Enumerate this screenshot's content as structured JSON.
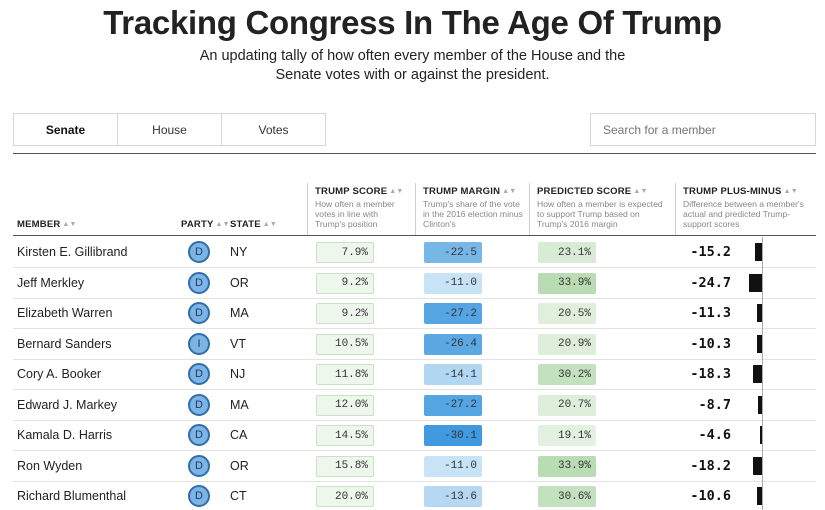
{
  "header": {
    "title": "Tracking Congress In The Age Of Trump",
    "subtitle": "An updating tally of how often every member of the House and the Senate votes with or against the president."
  },
  "tabs": [
    {
      "label": "Senate",
      "active": true
    },
    {
      "label": "House",
      "active": false
    },
    {
      "label": "Votes",
      "active": false
    }
  ],
  "search": {
    "placeholder": "Search for a member"
  },
  "columns": {
    "member": {
      "label": "MEMBER"
    },
    "party": {
      "label": "PARTY"
    },
    "state": {
      "label": "STATE"
    },
    "trump_score": {
      "label": "TRUMP SCORE",
      "desc": "How often a member votes in line with Trump's position"
    },
    "trump_margin": {
      "label": "TRUMP MARGIN",
      "desc": "Trump's share of the vote in the 2016 election minus Clinton's"
    },
    "predicted_score": {
      "label": "PREDICTED SCORE",
      "desc": "How often a member is expected to support Trump based on Trump's 2016 margin"
    },
    "plus_minus": {
      "label": "TRUMP PLUS-MINUS",
      "desc": "Difference between a member's actual and predicted Trump-support scores"
    }
  },
  "rows": [
    {
      "name": "Kirsten E. Gillibrand",
      "party": "D",
      "state": "NY",
      "score": "7.9%",
      "margin": "-22.5",
      "predicted": "23.1%",
      "plus_minus": "-15.2",
      "pm_value": -15.2,
      "margin_value": -22.5,
      "predicted_value": 23.1
    },
    {
      "name": "Jeff Merkley",
      "party": "D",
      "state": "OR",
      "score": "9.2%",
      "margin": "-11.0",
      "predicted": "33.9%",
      "plus_minus": "-24.7",
      "pm_value": -24.7,
      "margin_value": -11.0,
      "predicted_value": 33.9
    },
    {
      "name": "Elizabeth Warren",
      "party": "D",
      "state": "MA",
      "score": "9.2%",
      "margin": "-27.2",
      "predicted": "20.5%",
      "plus_minus": "-11.3",
      "pm_value": -11.3,
      "margin_value": -27.2,
      "predicted_value": 20.5
    },
    {
      "name": "Bernard Sanders",
      "party": "I",
      "state": "VT",
      "score": "10.5%",
      "margin": "-26.4",
      "predicted": "20.9%",
      "plus_minus": "-10.3",
      "pm_value": -10.3,
      "margin_value": -26.4,
      "predicted_value": 20.9
    },
    {
      "name": "Cory A. Booker",
      "party": "D",
      "state": "NJ",
      "score": "11.8%",
      "margin": "-14.1",
      "predicted": "30.2%",
      "plus_minus": "-18.3",
      "pm_value": -18.3,
      "margin_value": -14.1,
      "predicted_value": 30.2
    },
    {
      "name": "Edward J. Markey",
      "party": "D",
      "state": "MA",
      "score": "12.0%",
      "margin": "-27.2",
      "predicted": "20.7%",
      "plus_minus": "-8.7",
      "pm_value": -8.7,
      "margin_value": -27.2,
      "predicted_value": 20.7
    },
    {
      "name": "Kamala D. Harris",
      "party": "D",
      "state": "CA",
      "score": "14.5%",
      "margin": "-30.1",
      "predicted": "19.1%",
      "plus_minus": "-4.6",
      "pm_value": -4.6,
      "margin_value": -30.1,
      "predicted_value": 19.1
    },
    {
      "name": "Ron Wyden",
      "party": "D",
      "state": "OR",
      "score": "15.8%",
      "margin": "-11.0",
      "predicted": "33.9%",
      "plus_minus": "-18.2",
      "pm_value": -18.2,
      "margin_value": -11.0,
      "predicted_value": 33.9
    },
    {
      "name": "Richard Blumenthal",
      "party": "D",
      "state": "CT",
      "score": "20.0%",
      "margin": "-13.6",
      "predicted": "30.6%",
      "plus_minus": "-10.6",
      "pm_value": -10.6,
      "margin_value": -13.6,
      "predicted_value": 30.6
    }
  ],
  "colors": {
    "score_bg": "#eef7ec",
    "score_border": "#c9e2c5",
    "margin_light": "#cfe6f7",
    "margin_dark": "#3b97de",
    "predicted_light": "#e6f2e3",
    "predicted_dark": "#b7dbb1",
    "party_badge": "#7db4e6"
  }
}
